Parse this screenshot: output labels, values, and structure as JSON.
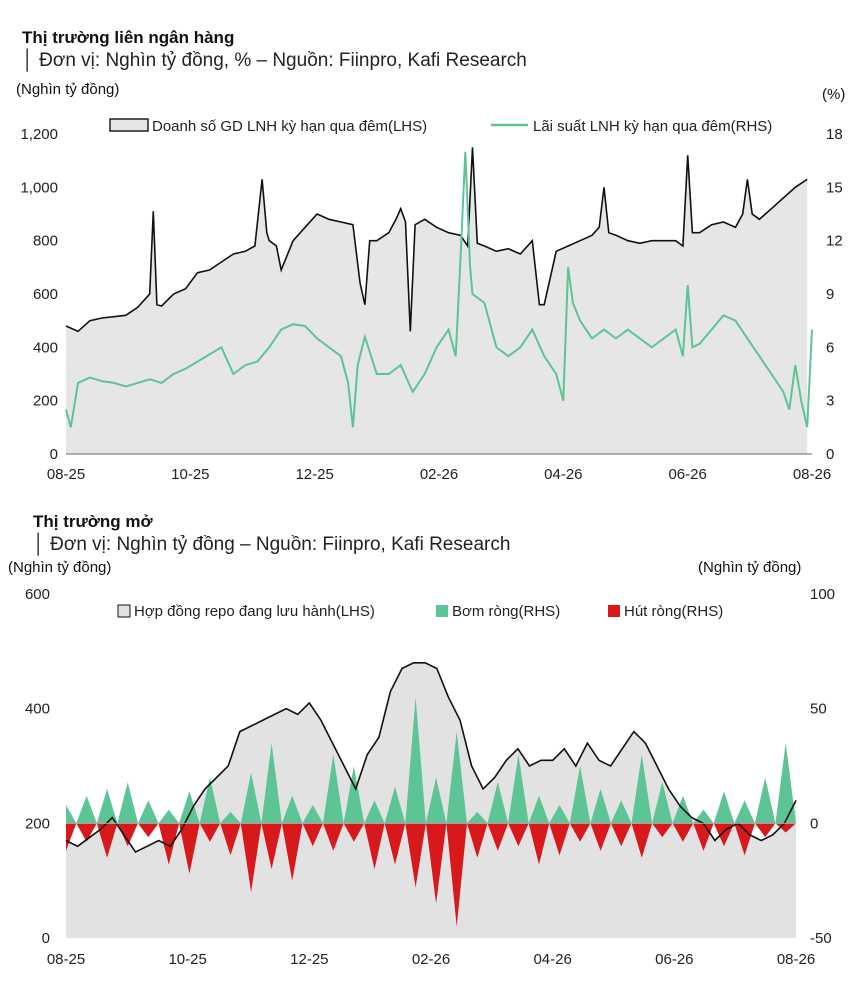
{
  "chart_data": [
    {
      "type": "line",
      "title": "Thị trường liên ngân hàng",
      "subtitle": "│ Đơn vị: Nghìn tỷ đồng, % – Nguồn: Fiinpro, Kafi Research",
      "ylabel_left": "(Nghìn tỷ đồng)",
      "ylabel_right": "(%)",
      "y_ticks_left": [
        "0",
        "200",
        "400",
        "600",
        "800",
        "1,000",
        "1,200"
      ],
      "y_ticks_right": [
        "0",
        "3",
        "6",
        "9",
        "12",
        "15",
        "18"
      ],
      "ylim_left": [
        0,
        1200
      ],
      "ylim_right": [
        0,
        18
      ],
      "x_ticks": [
        "08-25",
        "10-25",
        "12-25",
        "02-26",
        "04-26",
        "06-26",
        "08-26"
      ],
      "legend": "top",
      "grid": false,
      "series": [
        {
          "name": "Doanh số GD LNH kỳ hạn qua đêm(LHS)",
          "axis": "left",
          "color": "#111111",
          "fill": "#e6e6e6",
          "points": [
            [
              0,
              480
            ],
            [
              1,
              460
            ],
            [
              2,
              500
            ],
            [
              3,
              510
            ],
            [
              4,
              515
            ],
            [
              5,
              520
            ],
            [
              6,
              550
            ],
            [
              6.6,
              580
            ],
            [
              7,
              600
            ],
            [
              7.3,
              910
            ],
            [
              7.6,
              560
            ],
            [
              8,
              555
            ],
            [
              9,
              600
            ],
            [
              10,
              620
            ],
            [
              11,
              680
            ],
            [
              12,
              690
            ],
            [
              13,
              720
            ],
            [
              14,
              750
            ],
            [
              15,
              760
            ],
            [
              15.8,
              780
            ],
            [
              16.4,
              1030
            ],
            [
              16.8,
              830
            ],
            [
              17,
              800
            ],
            [
              17.6,
              780
            ],
            [
              18,
              690
            ],
            [
              19,
              800
            ],
            [
              20,
              850
            ],
            [
              21,
              900
            ],
            [
              22,
              880
            ],
            [
              23,
              870
            ],
            [
              24,
              860
            ],
            [
              24.6,
              640
            ],
            [
              25,
              560
            ],
            [
              25.4,
              800
            ],
            [
              26,
              800
            ],
            [
              27,
              830
            ],
            [
              27.6,
              880
            ],
            [
              28,
              920
            ],
            [
              28.4,
              870
            ],
            [
              28.8,
              460
            ],
            [
              29.2,
              860
            ],
            [
              30,
              880
            ],
            [
              31,
              850
            ],
            [
              32,
              830
            ],
            [
              33,
              820
            ],
            [
              33.6,
              780
            ],
            [
              34,
              1150
            ],
            [
              34.4,
              790
            ],
            [
              35,
              780
            ],
            [
              36,
              760
            ],
            [
              37,
              770
            ],
            [
              38,
              750
            ],
            [
              39,
              800
            ],
            [
              39.6,
              560
            ],
            [
              40,
              560
            ],
            [
              41,
              760
            ],
            [
              42,
              780
            ],
            [
              43,
              800
            ],
            [
              44,
              820
            ],
            [
              44.6,
              850
            ],
            [
              45,
              1000
            ],
            [
              45.4,
              830
            ],
            [
              46,
              820
            ],
            [
              47,
              800
            ],
            [
              48,
              790
            ],
            [
              49,
              800
            ],
            [
              50,
              800
            ],
            [
              51,
              800
            ],
            [
              51.6,
              780
            ],
            [
              52,
              1120
            ],
            [
              52.4,
              830
            ],
            [
              53,
              830
            ],
            [
              54,
              860
            ],
            [
              55,
              870
            ],
            [
              56,
              850
            ],
            [
              56.6,
              900
            ],
            [
              57,
              1030
            ],
            [
              57.4,
              900
            ],
            [
              58,
              880
            ],
            [
              59,
              920
            ],
            [
              60,
              960
            ],
            [
              61,
              1000
            ],
            [
              62,
              1030
            ]
          ]
        },
        {
          "name": "Lãi suất LNH kỳ hạn qua đêm(RHS)",
          "axis": "right",
          "color": "#5cc495",
          "points": [
            [
              0,
              2.5
            ],
            [
              0.4,
              1.5
            ],
            [
              1,
              4
            ],
            [
              2,
              4.3
            ],
            [
              3,
              4.1
            ],
            [
              4,
              4.0
            ],
            [
              5,
              3.8
            ],
            [
              6,
              4.0
            ],
            [
              7,
              4.2
            ],
            [
              8,
              4.0
            ],
            [
              9,
              4.5
            ],
            [
              10,
              4.8
            ],
            [
              11,
              5.2
            ],
            [
              12,
              5.6
            ],
            [
              13,
              6.0
            ],
            [
              14,
              4.5
            ],
            [
              15,
              5.0
            ],
            [
              16,
              5.2
            ],
            [
              17,
              6.0
            ],
            [
              18,
              7.0
            ],
            [
              19,
              7.3
            ],
            [
              20,
              7.2
            ],
            [
              21,
              6.5
            ],
            [
              22,
              6.0
            ],
            [
              23,
              5.5
            ],
            [
              23.6,
              4.0
            ],
            [
              24,
              1.5
            ],
            [
              24.4,
              5.0
            ],
            [
              25,
              6.6
            ],
            [
              26,
              4.5
            ],
            [
              27,
              4.5
            ],
            [
              28,
              5.0
            ],
            [
              29,
              3.5
            ],
            [
              30,
              4.5
            ],
            [
              31,
              6.0
            ],
            [
              32,
              7.0
            ],
            [
              32.6,
              5.5
            ],
            [
              33,
              11.0
            ],
            [
              33.4,
              17.0
            ],
            [
              33.8,
              10.5
            ],
            [
              34,
              9.0
            ],
            [
              35,
              8.5
            ],
            [
              36,
              6.0
            ],
            [
              37,
              5.5
            ],
            [
              38,
              6.0
            ],
            [
              39,
              7.0
            ],
            [
              40,
              5.5
            ],
            [
              41,
              4.5
            ],
            [
              41.6,
              3.0
            ],
            [
              42,
              10.5
            ],
            [
              42.4,
              8.5
            ],
            [
              43,
              7.5
            ],
            [
              44,
              6.5
            ],
            [
              45,
              7.0
            ],
            [
              46,
              6.5
            ],
            [
              47,
              7.0
            ],
            [
              48,
              6.5
            ],
            [
              49,
              6.0
            ],
            [
              50,
              6.5
            ],
            [
              51,
              7.0
            ],
            [
              51.6,
              5.5
            ],
            [
              52,
              9.5
            ],
            [
              52.4,
              6.0
            ],
            [
              53,
              6.2
            ],
            [
              54,
              7.0
            ],
            [
              55,
              7.8
            ],
            [
              56,
              7.5
            ],
            [
              57,
              6.5
            ],
            [
              58,
              5.5
            ],
            [
              59,
              4.5
            ],
            [
              60,
              3.5
            ],
            [
              60.5,
              2.5
            ],
            [
              61,
              5.0
            ],
            [
              61.5,
              3.0
            ],
            [
              62,
              1.5
            ],
            [
              62.4,
              7.0
            ]
          ]
        }
      ]
    },
    {
      "type": "area",
      "title": "Thị trường mở",
      "subtitle": "│ Đơn vị: Nghìn tỷ đồng – Nguồn: Fiinpro, Kafi Research",
      "ylabel_left": "(Nghìn tỷ đồng)",
      "ylabel_right": "(Nghìn tỷ đồng)",
      "y_ticks_left": [
        "0",
        "200",
        "400",
        "600"
      ],
      "y_ticks_right": [
        "-50",
        "0",
        "50",
        "100"
      ],
      "ylim_left": [
        0,
        600
      ],
      "ylim_right": [
        -50,
        100
      ],
      "x_ticks": [
        "08-25",
        "10-25",
        "12-25",
        "02-26",
        "04-26",
        "06-26",
        "08-26"
      ],
      "legend": "top",
      "grid": false,
      "series": [
        {
          "name": "Hợp đồng repo đang lưu hành(LHS)",
          "axis": "left",
          "kind": "area",
          "color": "#111111",
          "fill": "#e2e2e2",
          "points": [
            [
              0,
              170
            ],
            [
              1,
              160
            ],
            [
              2,
              175
            ],
            [
              3,
              190
            ],
            [
              4,
              210
            ],
            [
              5,
              180
            ],
            [
              6,
              150
            ],
            [
              7,
              160
            ],
            [
              8,
              170
            ],
            [
              9,
              160
            ],
            [
              10,
              190
            ],
            [
              11,
              230
            ],
            [
              12,
              260
            ],
            [
              13,
              280
            ],
            [
              14,
              300
            ],
            [
              15,
              360
            ],
            [
              16,
              370
            ],
            [
              17,
              380
            ],
            [
              18,
              390
            ],
            [
              19,
              400
            ],
            [
              20,
              390
            ],
            [
              21,
              410
            ],
            [
              22,
              380
            ],
            [
              23,
              340
            ],
            [
              24,
              300
            ],
            [
              25,
              260
            ],
            [
              26,
              320
            ],
            [
              27,
              350
            ],
            [
              28,
              430
            ],
            [
              29,
              470
            ],
            [
              30,
              480
            ],
            [
              31,
              480
            ],
            [
              32,
              470
            ],
            [
              33,
              420
            ],
            [
              34,
              380
            ],
            [
              35,
              300
            ],
            [
              36,
              260
            ],
            [
              37,
              280
            ],
            [
              38,
              310
            ],
            [
              39,
              330
            ],
            [
              40,
              300
            ],
            [
              41,
              310
            ],
            [
              42,
              310
            ],
            [
              43,
              330
            ],
            [
              44,
              300
            ],
            [
              45,
              340
            ],
            [
              46,
              310
            ],
            [
              47,
              300
            ],
            [
              48,
              330
            ],
            [
              49,
              360
            ],
            [
              50,
              340
            ],
            [
              51,
              300
            ],
            [
              52,
              260
            ],
            [
              53,
              230
            ],
            [
              54,
              210
            ],
            [
              55,
              200
            ],
            [
              56,
              170
            ],
            [
              57,
              190
            ],
            [
              58,
              200
            ],
            [
              59,
              180
            ],
            [
              60,
              170
            ],
            [
              61,
              180
            ],
            [
              62,
              200
            ],
            [
              63,
              240
            ]
          ]
        },
        {
          "name": "Bơm ròng(RHS)",
          "axis": "right",
          "kind": "spikes",
          "color": "#5cc495",
          "values": [
            8,
            0,
            12,
            0,
            15,
            0,
            18,
            0,
            10,
            0,
            6,
            0,
            14,
            0,
            20,
            0,
            5,
            0,
            22,
            0,
            35,
            0,
            12,
            0,
            8,
            0,
            30,
            0,
            25,
            0,
            10,
            0,
            16,
            0,
            55,
            0,
            20,
            0,
            40,
            0,
            5,
            0,
            18,
            0,
            30,
            0,
            12,
            0,
            8,
            0,
            25,
            0,
            15,
            0,
            10,
            0,
            30,
            0,
            18,
            0,
            12,
            0,
            6,
            0,
            14,
            0,
            10,
            0,
            20,
            0,
            35,
            0
          ]
        },
        {
          "name": "Hút ròng(RHS)",
          "axis": "right",
          "kind": "spikes",
          "color": "#d7191c",
          "values": [
            -12,
            0,
            -8,
            0,
            -15,
            0,
            -10,
            0,
            -6,
            0,
            -18,
            0,
            -22,
            0,
            -8,
            0,
            -14,
            0,
            -30,
            0,
            -20,
            0,
            -25,
            0,
            -10,
            0,
            -12,
            0,
            -8,
            0,
            -20,
            0,
            -18,
            0,
            -28,
            0,
            -35,
            0,
            -45,
            0,
            -15,
            0,
            -12,
            0,
            -10,
            0,
            -18,
            0,
            -14,
            0,
            -8,
            0,
            -12,
            0,
            -10,
            0,
            -15,
            0,
            -6,
            0,
            -8,
            0,
            -12,
            0,
            -10,
            0,
            -14,
            0,
            -6,
            0,
            -4,
            0
          ]
        }
      ]
    }
  ]
}
